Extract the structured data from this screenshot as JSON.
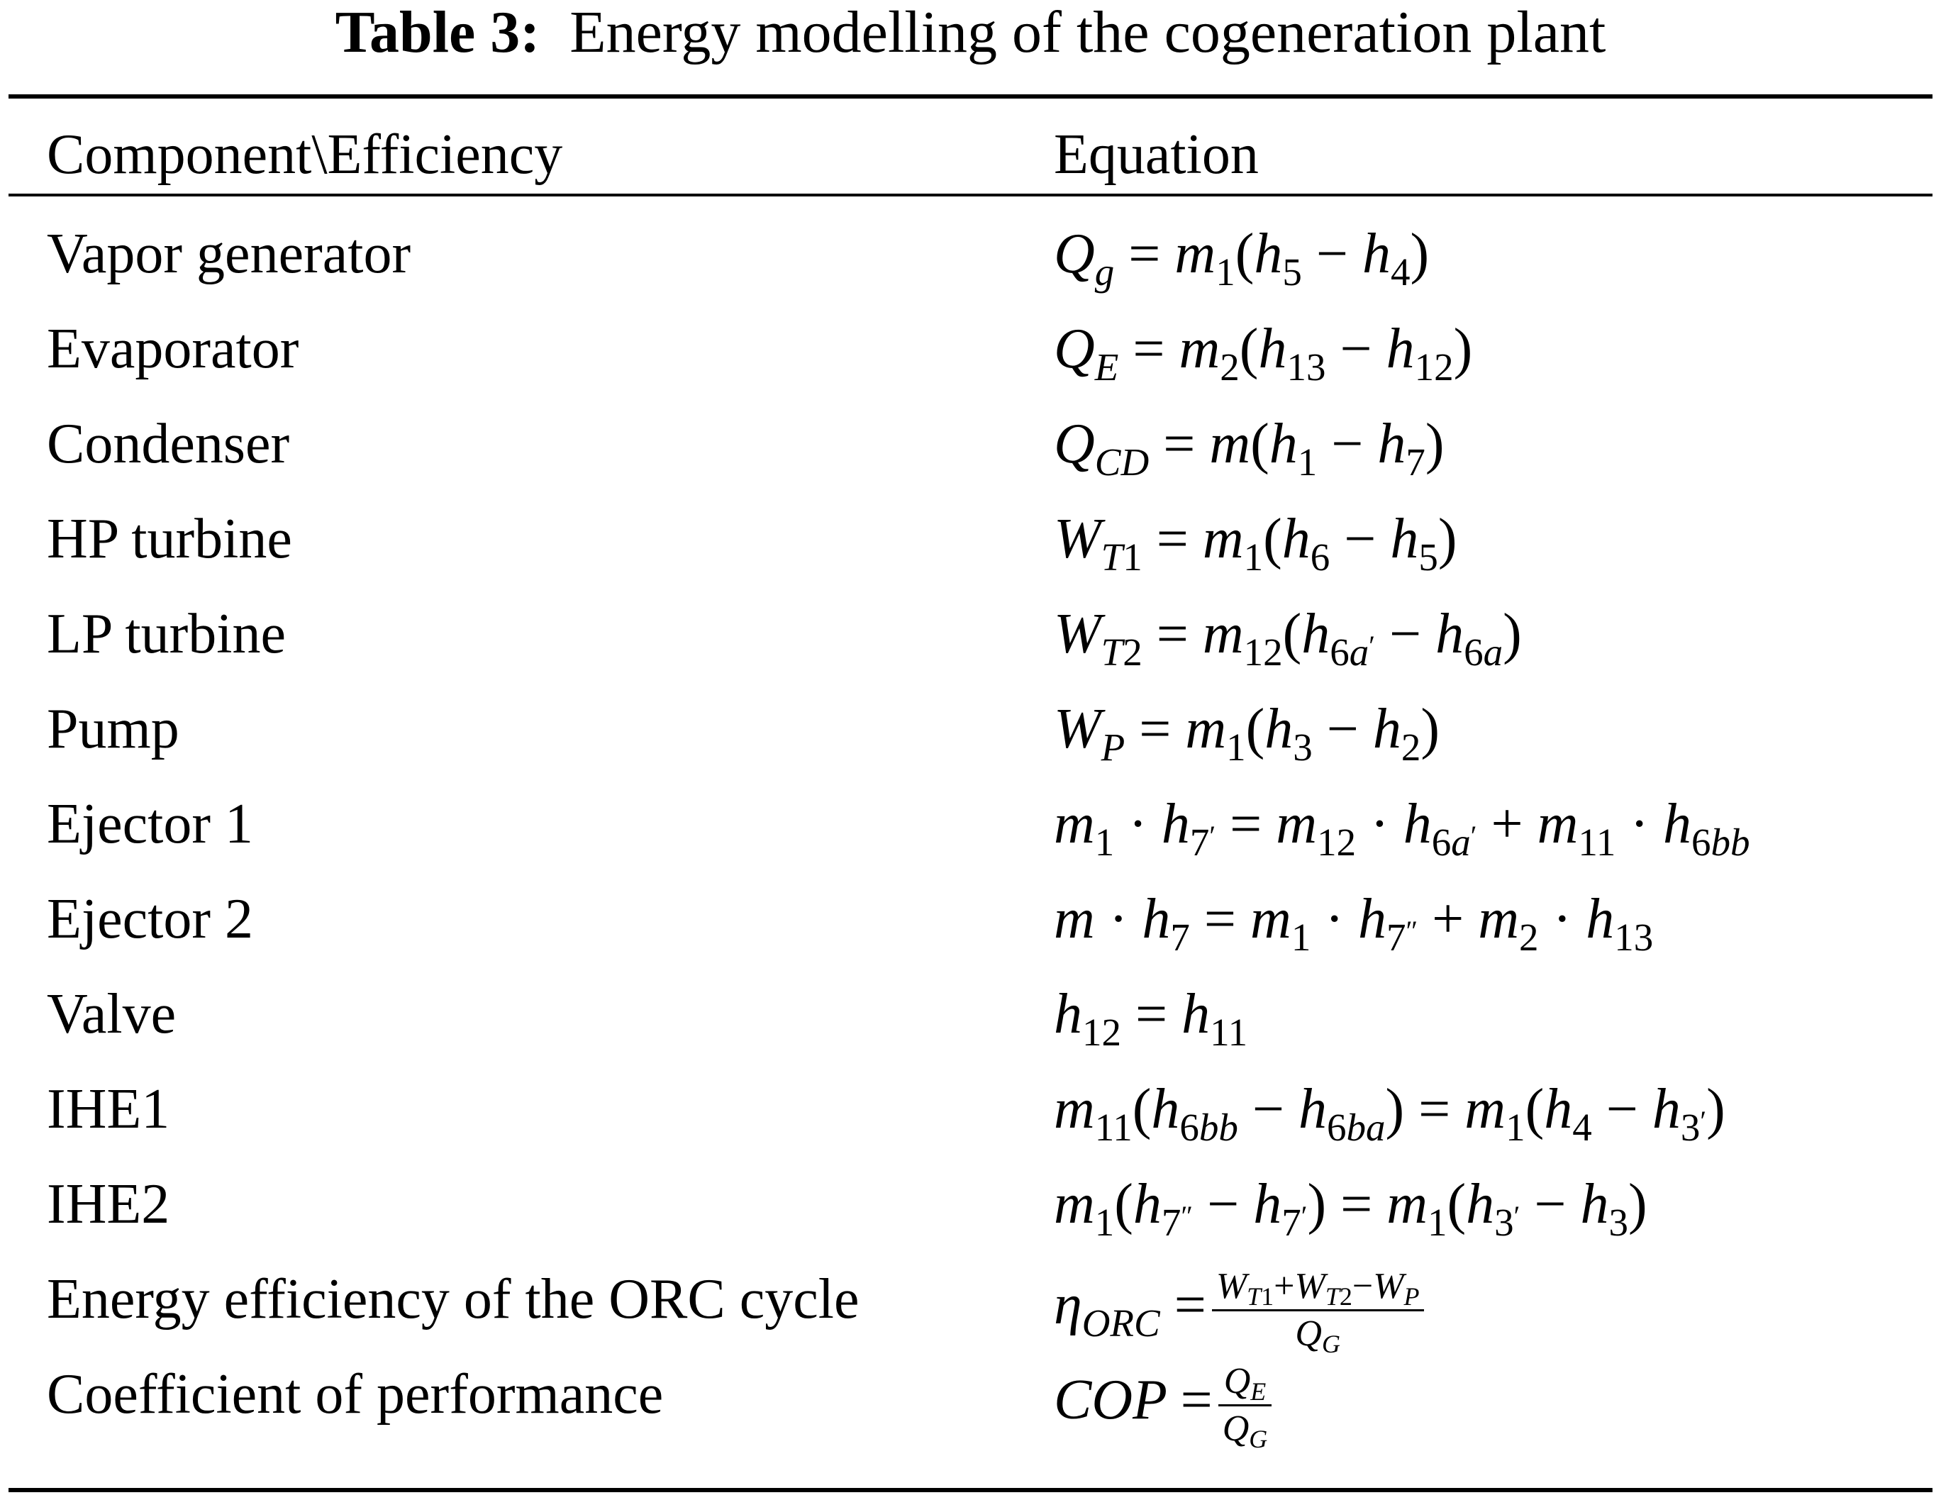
{
  "table": {
    "caption_label": "Table 3:",
    "caption_text": "Energy modelling of the cogeneration plant",
    "headers": {
      "component": "Component\\Efficiency",
      "equation": "Equation"
    },
    "rows": [
      {
        "component": "Vapor generator"
      },
      {
        "component": "Evaporator"
      },
      {
        "component": "Condenser"
      },
      {
        "component": "HP turbine"
      },
      {
        "component": "LP turbine"
      },
      {
        "component": "Pump"
      },
      {
        "component": "Ejector 1"
      },
      {
        "component": "Ejector 2"
      },
      {
        "component": "Valve"
      },
      {
        "component": "IHE1"
      },
      {
        "component": "IHE2"
      },
      {
        "component": "Energy efficiency of the ORC cycle"
      },
      {
        "component": "Coefficient of performance"
      }
    ]
  }
}
